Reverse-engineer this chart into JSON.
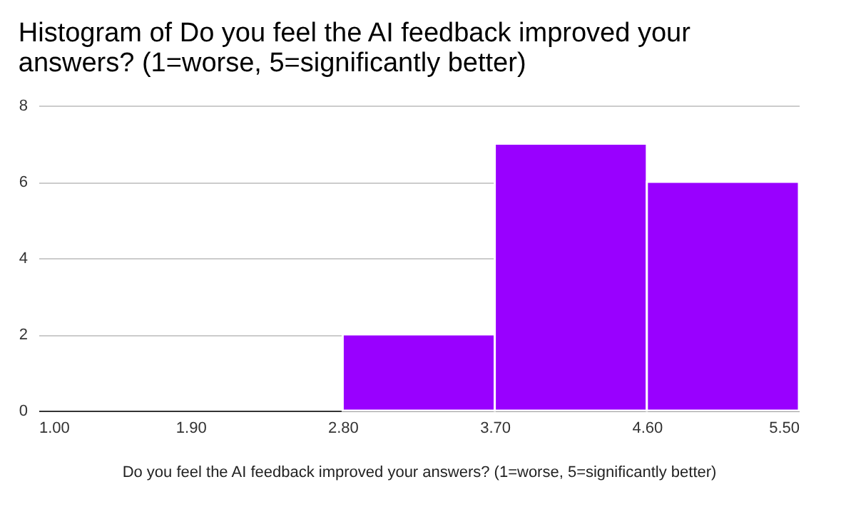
{
  "chart_data": {
    "type": "histogram",
    "title": "Histogram of Do you feel the AI feedback improved your answers? (1=worse, 5=significantly better)",
    "xlabel": "Do you feel the AI feedback improved your answers? (1=worse, 5=significantly better)",
    "bins": [
      1.0,
      1.9,
      2.8,
      3.7,
      4.6,
      5.5
    ],
    "values": [
      0,
      0,
      2,
      7,
      6
    ],
    "color": "#9900ff",
    "xlim": [
      1.0,
      5.5
    ],
    "xticks": [
      {
        "value": 1.0,
        "label": "1.00"
      },
      {
        "value": 1.9,
        "label": "1.90"
      },
      {
        "value": 2.8,
        "label": "2.80"
      },
      {
        "value": 3.7,
        "label": "3.70"
      },
      {
        "value": 4.6,
        "label": "4.60"
      },
      {
        "value": 5.5,
        "label": "5.50"
      }
    ],
    "ylim": [
      0,
      8
    ],
    "yticks": [
      0,
      2,
      4,
      6,
      8
    ],
    "grid": "y"
  }
}
